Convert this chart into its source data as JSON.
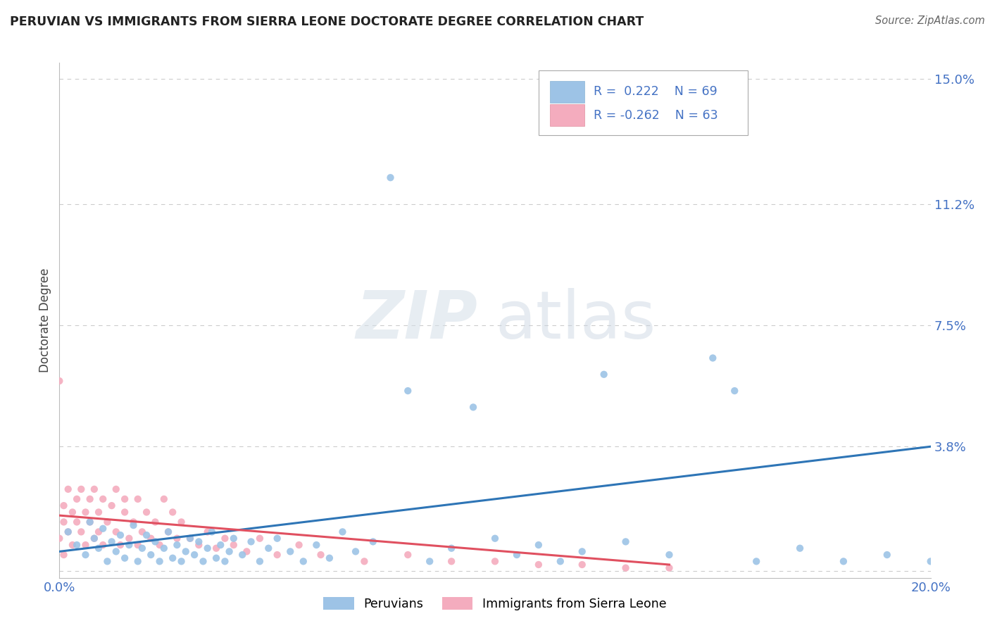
{
  "title": "PERUVIAN VS IMMIGRANTS FROM SIERRA LEONE DOCTORATE DEGREE CORRELATION CHART",
  "source": "Source: ZipAtlas.com",
  "ylabel": "Doctorate Degree",
  "xlim": [
    0.0,
    0.2
  ],
  "ylim": [
    -0.002,
    0.155
  ],
  "yticks": [
    0.0,
    0.038,
    0.075,
    0.112,
    0.15
  ],
  "ytick_labels": [
    "",
    "3.8%",
    "7.5%",
    "11.2%",
    "15.0%"
  ],
  "xticks": [
    0.0,
    0.2
  ],
  "xtick_labels": [
    "0.0%",
    "20.0%"
  ],
  "blue_color": "#9dc3e6",
  "pink_color": "#f4acbe",
  "trend_blue": "#2e75b6",
  "trend_pink": "#e05060",
  "text_color": "#4472c4",
  "legend_r_blue": "0.222",
  "legend_n_blue": "69",
  "legend_r_pink": "-0.262",
  "legend_n_pink": "63",
  "watermark_zip": "ZIP",
  "watermark_atlas": "atlas",
  "blue_scatter_x": [
    0.002,
    0.004,
    0.006,
    0.007,
    0.008,
    0.009,
    0.01,
    0.011,
    0.012,
    0.013,
    0.014,
    0.015,
    0.016,
    0.017,
    0.018,
    0.019,
    0.02,
    0.021,
    0.022,
    0.023,
    0.024,
    0.025,
    0.026,
    0.027,
    0.028,
    0.029,
    0.03,
    0.031,
    0.032,
    0.033,
    0.034,
    0.035,
    0.036,
    0.037,
    0.038,
    0.039,
    0.04,
    0.042,
    0.044,
    0.046,
    0.048,
    0.05,
    0.053,
    0.056,
    0.059,
    0.062,
    0.065,
    0.068,
    0.072,
    0.076,
    0.08,
    0.085,
    0.09,
    0.095,
    0.1,
    0.105,
    0.11,
    0.115,
    0.12,
    0.125,
    0.13,
    0.14,
    0.15,
    0.155,
    0.16,
    0.17,
    0.18,
    0.19,
    0.2
  ],
  "blue_scatter_y": [
    0.012,
    0.008,
    0.005,
    0.015,
    0.01,
    0.007,
    0.013,
    0.003,
    0.009,
    0.006,
    0.011,
    0.004,
    0.008,
    0.014,
    0.003,
    0.007,
    0.011,
    0.005,
    0.009,
    0.003,
    0.007,
    0.012,
    0.004,
    0.008,
    0.003,
    0.006,
    0.01,
    0.005,
    0.009,
    0.003,
    0.007,
    0.012,
    0.004,
    0.008,
    0.003,
    0.006,
    0.01,
    0.005,
    0.009,
    0.003,
    0.007,
    0.01,
    0.006,
    0.003,
    0.008,
    0.004,
    0.012,
    0.006,
    0.009,
    0.12,
    0.055,
    0.003,
    0.007,
    0.05,
    0.01,
    0.005,
    0.008,
    0.003,
    0.006,
    0.06,
    0.009,
    0.005,
    0.065,
    0.055,
    0.003,
    0.007,
    0.003,
    0.005,
    0.003
  ],
  "pink_scatter_x": [
    0.0,
    0.001,
    0.001,
    0.002,
    0.002,
    0.003,
    0.003,
    0.004,
    0.004,
    0.005,
    0.005,
    0.006,
    0.006,
    0.007,
    0.007,
    0.008,
    0.008,
    0.009,
    0.009,
    0.01,
    0.01,
    0.011,
    0.012,
    0.013,
    0.013,
    0.014,
    0.015,
    0.015,
    0.016,
    0.017,
    0.018,
    0.018,
    0.019,
    0.02,
    0.021,
    0.022,
    0.023,
    0.024,
    0.025,
    0.026,
    0.027,
    0.028,
    0.03,
    0.032,
    0.034,
    0.036,
    0.038,
    0.04,
    0.043,
    0.046,
    0.05,
    0.055,
    0.06,
    0.07,
    0.08,
    0.09,
    0.1,
    0.11,
    0.12,
    0.13,
    0.14,
    0.0,
    0.001
  ],
  "pink_scatter_y": [
    0.01,
    0.015,
    0.02,
    0.012,
    0.025,
    0.008,
    0.018,
    0.015,
    0.022,
    0.012,
    0.025,
    0.018,
    0.008,
    0.015,
    0.022,
    0.01,
    0.025,
    0.012,
    0.018,
    0.008,
    0.022,
    0.015,
    0.02,
    0.012,
    0.025,
    0.008,
    0.018,
    0.022,
    0.01,
    0.015,
    0.008,
    0.022,
    0.012,
    0.018,
    0.01,
    0.015,
    0.008,
    0.022,
    0.012,
    0.018,
    0.01,
    0.015,
    0.01,
    0.008,
    0.012,
    0.007,
    0.01,
    0.008,
    0.006,
    0.01,
    0.005,
    0.008,
    0.005,
    0.003,
    0.005,
    0.003,
    0.003,
    0.002,
    0.002,
    0.001,
    0.001,
    0.058,
    0.005
  ],
  "blue_trend_x": [
    0.0,
    0.2
  ],
  "blue_trend_y": [
    0.006,
    0.038
  ],
  "pink_trend_x": [
    0.0,
    0.14
  ],
  "pink_trend_y": [
    0.017,
    0.002
  ]
}
